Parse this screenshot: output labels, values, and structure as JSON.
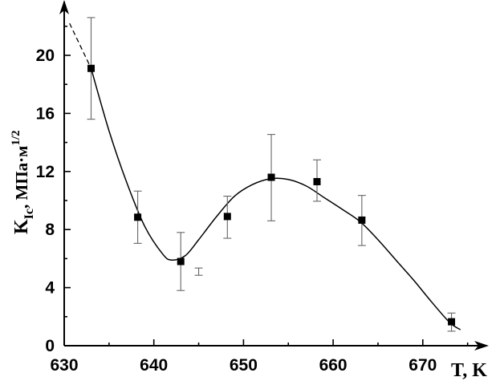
{
  "chart_data": {
    "type": "scatter",
    "title": "",
    "xlabel": "T, K",
    "ylabel": {
      "main": "K",
      "sub": "Ic",
      "rest": ", МПа·м",
      "sup": "1/2"
    },
    "xlim": [
      630,
      677
    ],
    "ylim": [
      0,
      23.7
    ],
    "x_ticks": [
      630,
      640,
      650,
      660,
      670
    ],
    "y_ticks": [
      0,
      4,
      8,
      12,
      16,
      20
    ],
    "grid": false,
    "legend": "none",
    "points": [
      {
        "x": 633,
        "y": 19.1,
        "err_low": 15.6,
        "err_high": 22.6
      },
      {
        "x": 638.2,
        "y": 8.85,
        "err_low": 7.05,
        "err_high": 10.65
      },
      {
        "x": 643,
        "y": 5.8,
        "err_low": 3.8,
        "err_high": 7.8
      },
      {
        "x": 648.2,
        "y": 8.9,
        "err_low": 7.4,
        "err_high": 10.3
      },
      {
        "x": 653.1,
        "y": 11.6,
        "err_low": 8.6,
        "err_high": 14.55
      },
      {
        "x": 658.2,
        "y": 11.3,
        "err_low": 9.95,
        "err_high": 12.8
      },
      {
        "x": 663.2,
        "y": 8.65,
        "err_low": 6.9,
        "err_high": 10.35
      },
      {
        "x": 673.2,
        "y": 1.65,
        "err_low": 1.0,
        "err_high": 2.25
      }
    ],
    "stray_error_bars": [
      {
        "x": 645,
        "low": 4.85,
        "high": 5.35
      }
    ],
    "fit_curve": [
      [
        633,
        19.1
      ],
      [
        635,
        14.8
      ],
      [
        637,
        11.2
      ],
      [
        639,
        8.2
      ],
      [
        641,
        6.3
      ],
      [
        642,
        5.9
      ],
      [
        643.5,
        6.2
      ],
      [
        645,
        7.3
      ],
      [
        647,
        8.9
      ],
      [
        649,
        10.3
      ],
      [
        651,
        11.1
      ],
      [
        653,
        11.5
      ],
      [
        655,
        11.45
      ],
      [
        657,
        11.0
      ],
      [
        659,
        10.2
      ],
      [
        661,
        9.4
      ],
      [
        663,
        8.55
      ],
      [
        665,
        7.3
      ],
      [
        667,
        5.9
      ],
      [
        669,
        4.5
      ],
      [
        671,
        3.0
      ],
      [
        673,
        1.6
      ],
      [
        674.2,
        1.1
      ]
    ],
    "fit_extrapolation": [
      [
        630.6,
        22.2
      ],
      [
        633,
        19.1
      ]
    ],
    "marker_color": "#000000",
    "line_color": "#000000"
  }
}
